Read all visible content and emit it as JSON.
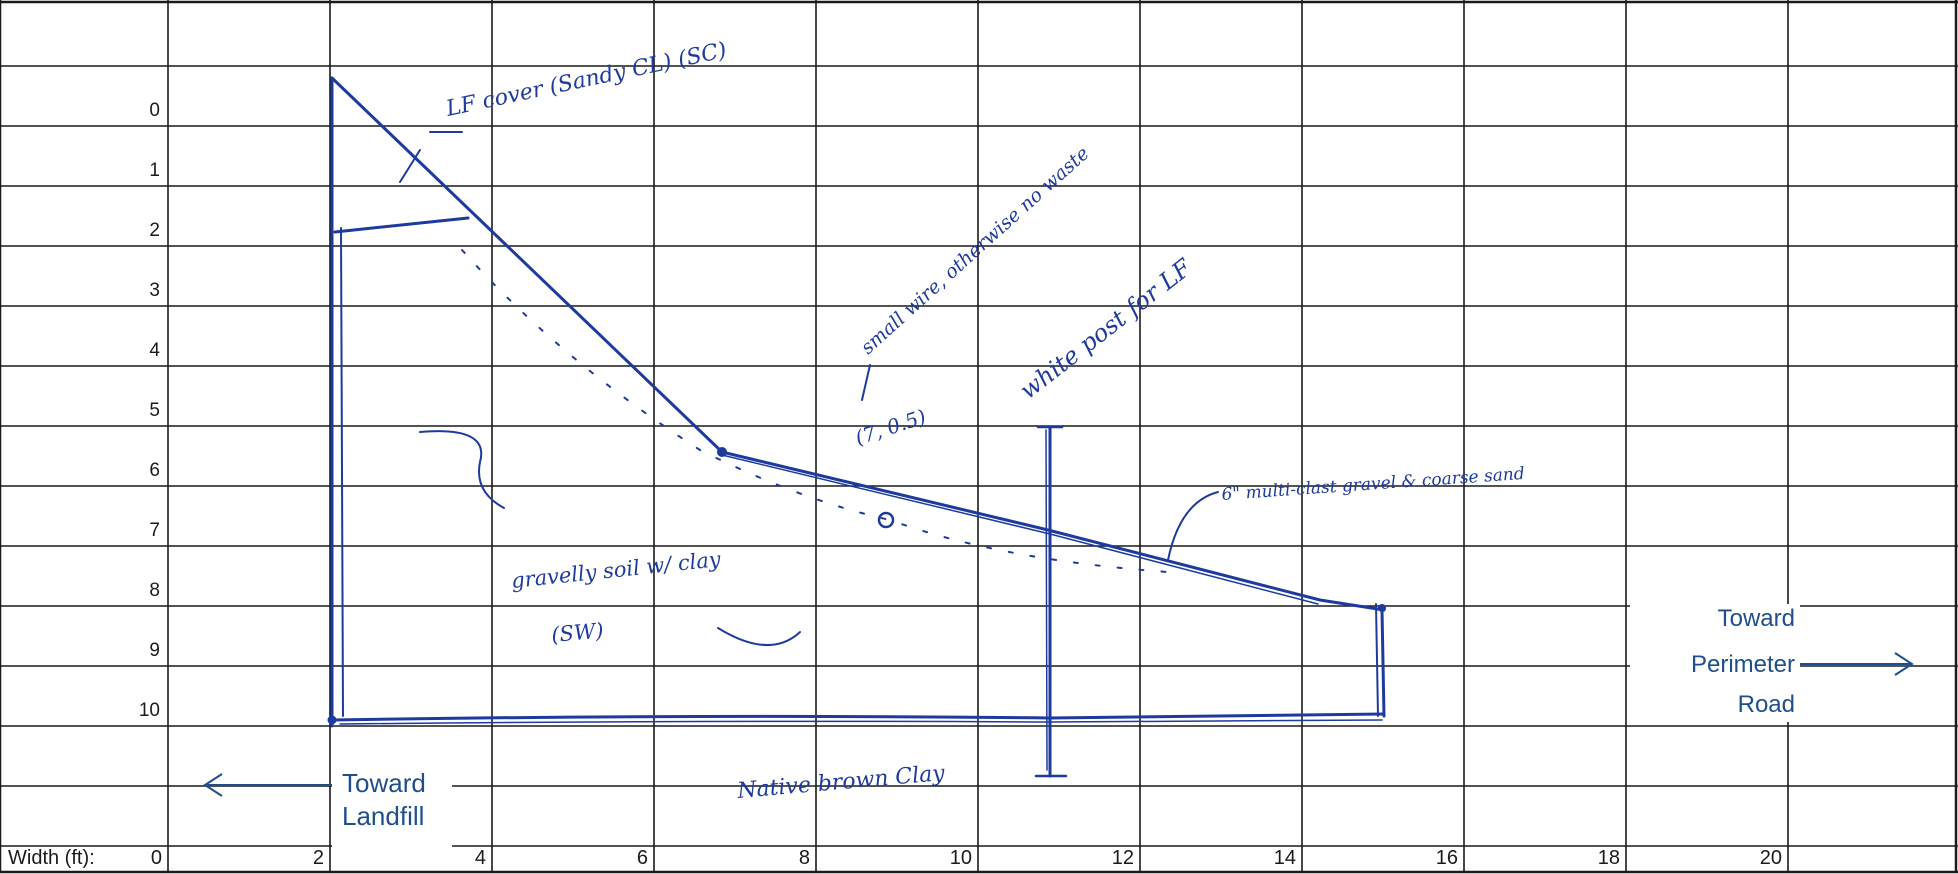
{
  "grid": {
    "depth_labels": [
      "0",
      "1",
      "2",
      "3",
      "4",
      "5",
      "6",
      "7",
      "8",
      "9",
      "10"
    ],
    "width_axis_label": "Width (ft):",
    "width_labels": [
      "0",
      "2",
      "4",
      "6",
      "8",
      "10",
      "12",
      "14",
      "16",
      "18",
      "20"
    ]
  },
  "printed_labels": {
    "toward_landfill": [
      "Toward",
      "Landfill"
    ],
    "toward_perimeter_road": [
      "Toward",
      "Perimeter",
      "Road"
    ]
  },
  "handwritten_notes": {
    "lf_cover": "LF cover (Sandy CL) (SC)",
    "small_wire": "small wire, otherwise no waste",
    "white_post": "white post for LF",
    "coordinate": "(7, 0.5)",
    "gravelly_soil": "gravelly soil w/ clay",
    "gravelly_code": "(SW)",
    "multi_clast": "6\" multi-clast gravel & coarse sand",
    "native_clay": "Native brown Clay"
  },
  "colors": {
    "grid_line": "#1a1a1a",
    "ink": "#1f3a9e",
    "printed_label": "#1f4e8c"
  }
}
